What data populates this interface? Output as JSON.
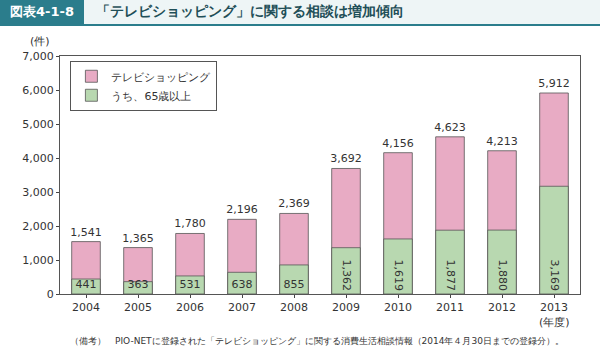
{
  "chart_data": {
    "type": "bar",
    "figure_number": "図表4-1-8",
    "title": "「テレビショッピング」に関する相談は増加傾向",
    "y_label": "(件)",
    "x_label": "(年度)",
    "note": "（備考）　PIO-NETに登録された「テレビショッピング」に関する消費生活相談情報（2014年４月30日までの登録分）。",
    "categories": [
      "2004",
      "2005",
      "2006",
      "2007",
      "2008",
      "2009",
      "2010",
      "2011",
      "2012",
      "2013"
    ],
    "series": [
      {
        "name": "テレビショッピング",
        "color": "#e8abc4",
        "values": [
          1541,
          1365,
          1780,
          2196,
          2369,
          3692,
          4156,
          4623,
          4213,
          5912
        ],
        "value_labels": [
          "1,541",
          "1,365",
          "1,780",
          "2,196",
          "2,369",
          "3,692",
          "4,156",
          "4,623",
          "4,213",
          "5,912"
        ]
      },
      {
        "name": "うち、65歳以上",
        "color": "#b8d8b0",
        "values": [
          441,
          363,
          531,
          638,
          855,
          1362,
          1619,
          1877,
          1880,
          3169
        ],
        "value_labels": [
          "441",
          "363",
          "531",
          "638",
          "855",
          "1,362",
          "1,619",
          "1,877",
          "1,880",
          "3,169"
        ]
      }
    ],
    "stacked": false,
    "data_labels": true,
    "legend": "top left",
    "grid": false,
    "ylim": [
      0,
      7000
    ],
    "yticks": [
      0,
      {
        "value": 1000,
        "label": "1,000"
      },
      {
        "value": 2000,
        "label": "2,000"
      },
      {
        "value": 3000,
        "label": "3,000"
      },
      {
        "value": 4000,
        "label": "4,000"
      },
      {
        "value": 5000,
        "label": "5,000"
      },
      {
        "value": 6000,
        "label": "6,000"
      },
      {
        "value": 7000,
        "label": "7,000"
      }
    ]
  }
}
